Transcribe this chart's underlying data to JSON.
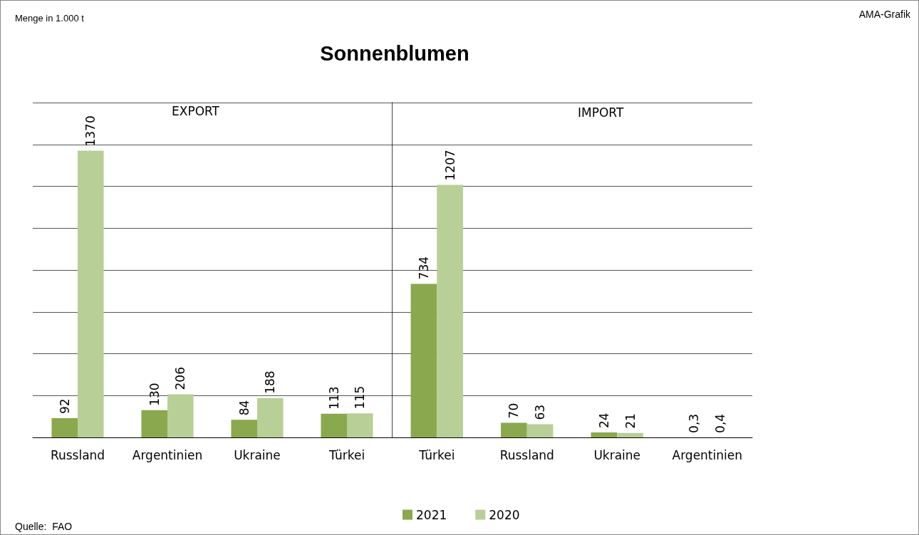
{
  "chart_data": [
    {
      "type": "bar",
      "title": "Sonnenblumen",
      "categories": [
        "Russland",
        "Argentinien",
        "Ukraine",
        "Türkei"
      ],
      "series": [
        {
          "color": "#8aa84e",
          "values": [
            92,
            130,
            84,
            113
          ],
          "value_labels": [
            "92",
            "130",
            "84",
            "113"
          ]
        },
        {
          "color": "#b8cf98",
          "values": [
            1370,
            206,
            188,
            115
          ],
          "value_labels": [
            "1370",
            "206",
            "188",
            "115"
          ]
        }
      ],
      "ylim": [
        0,
        1600
      ],
      "yticks": [
        {
          "value": 0,
          "label": null
        },
        {
          "value": 200,
          "label": null
        },
        {
          "value": 400,
          "label": null
        },
        {
          "value": 600,
          "label": null
        },
        {
          "value": 800,
          "label": null
        },
        {
          "value": 1000,
          "label": null
        },
        {
          "value": 1200,
          "label": null
        },
        {
          "value": 1400,
          "label": null
        },
        {
          "value": 1600,
          "label": null
        }
      ],
      "grid": "y",
      "tick_labels": "x",
      "annotations": [
        "Menge in 1.000 t",
        "EXPORT",
        "Quelle:  FAO"
      ]
    },
    {
      "type": "bar",
      "categories": [
        "Türkei",
        "Russland",
        "Ukraine",
        "Argentinien"
      ],
      "series": [
        {
          "name": "2021",
          "color": "#8aa84e",
          "values": [
            734,
            70,
            24,
            0.3
          ],
          "value_labels": [
            "734",
            "70",
            "24",
            "0,3"
          ]
        },
        {
          "name": "2020",
          "color": "#b8cf98",
          "values": [
            1207,
            63,
            21,
            0.4
          ],
          "value_labels": [
            "1207",
            "63",
            "21",
            "0,4"
          ]
        }
      ],
      "ylim": [
        0,
        1600
      ],
      "yticks": [
        {
          "value": 0,
          "label": null
        },
        {
          "value": 200,
          "label": null
        },
        {
          "value": 400,
          "label": null
        },
        {
          "value": 600,
          "label": null
        },
        {
          "value": 800,
          "label": null
        },
        {
          "value": 1000,
          "label": null
        },
        {
          "value": 1200,
          "label": null
        },
        {
          "value": 1400,
          "label": null
        },
        {
          "value": 1600,
          "label": null
        }
      ],
      "grid": "y",
      "legend": "bottom",
      "tick_labels": "x",
      "annotations": [
        "IMPORT",
        "AMA-Grafik"
      ]
    }
  ]
}
